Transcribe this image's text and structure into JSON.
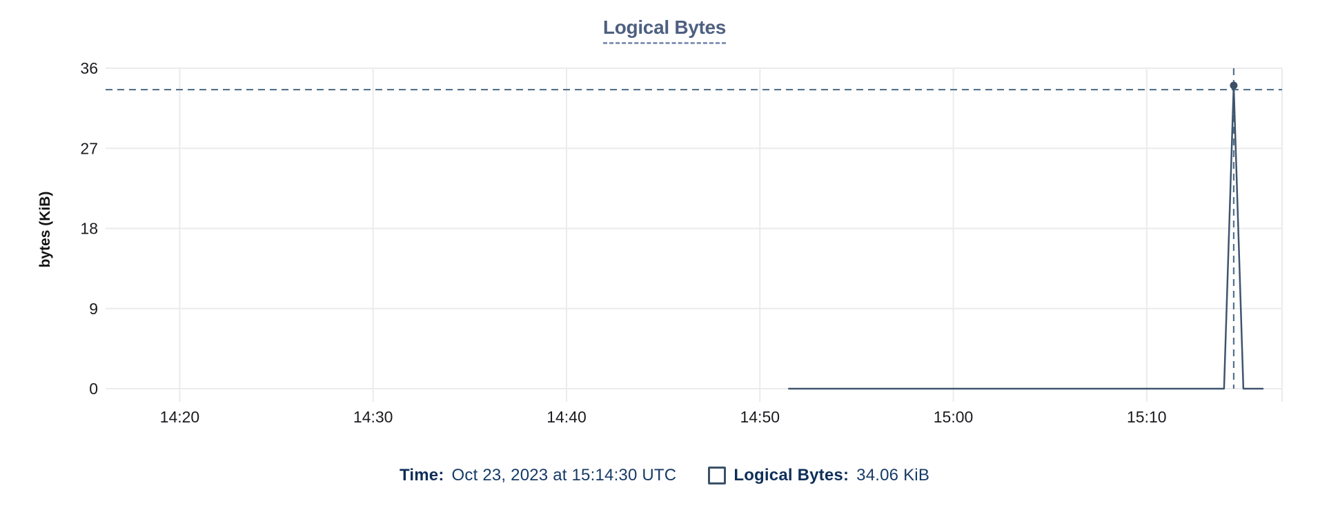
{
  "title": "Logical Bytes",
  "y_axis_label": "bytes (KiB)",
  "tooltip": {
    "time_label": "Time:",
    "time_value": "Oct 23, 2023 at 15:14:30 UTC",
    "series_label": "Logical Bytes:",
    "series_value": "34.06 KiB"
  },
  "colors": {
    "series_line": "#3e546f",
    "hover_dot": "#3d4f66",
    "crosshair": "#54718a",
    "gridline": "#ebebed",
    "title_text": "#4e6080",
    "title_underline": "#8494b5",
    "tooltip_label": "#0e2f58",
    "tooltip_value": "#173a67",
    "tick_label": "#1b1b1f",
    "legend_box_border": "#3b5068"
  },
  "chart_data": {
    "type": "line",
    "title": "Logical Bytes",
    "xlabel": "",
    "ylabel": "bytes (KiB)",
    "ylim": [
      0,
      36
    ],
    "y_ticks": [
      0,
      9,
      18,
      27,
      36
    ],
    "x_ticks": [
      {
        "label": "14:20",
        "time": "14:20"
      },
      {
        "label": "14:30",
        "time": "14:30"
      },
      {
        "label": "14:40",
        "time": "14:40"
      },
      {
        "label": "14:50",
        "time": "14:50"
      },
      {
        "label": "15:00",
        "time": "15:00"
      },
      {
        "label": "15:10",
        "time": "15:10"
      }
    ],
    "x_window": [
      "14:16:10",
      "15:17:00"
    ],
    "grid": true,
    "right_edge_gridline": true,
    "legend_position": "bottom",
    "series": [
      {
        "name": "Logical Bytes",
        "points": [
          [
            "14:51:30",
            0
          ],
          [
            "15:14:00",
            0
          ],
          [
            "15:14:30",
            34.06
          ],
          [
            "15:15:00",
            0
          ],
          [
            "15:16:00",
            0
          ]
        ]
      }
    ],
    "hover": {
      "time": "15:14:30",
      "value": 34.06,
      "time_display": "Oct 23, 2023 at 15:14:30 UTC",
      "value_display": "34.06 KiB"
    }
  }
}
